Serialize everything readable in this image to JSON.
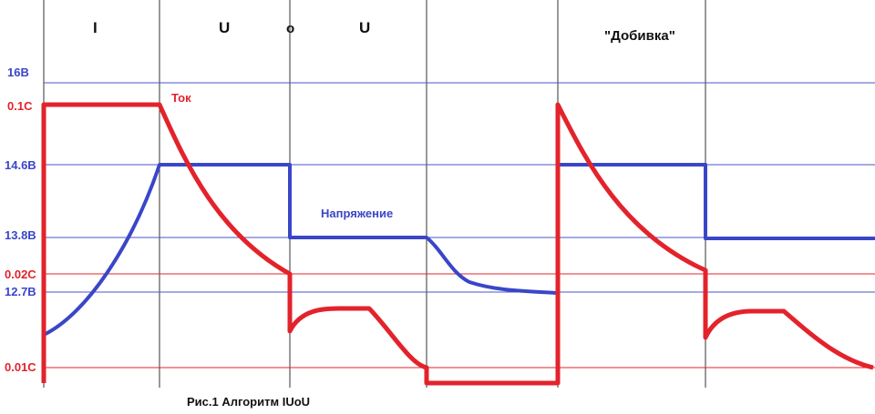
{
  "stages": [
    "I",
    "U",
    "o",
    "U",
    "\"Добивка\""
  ],
  "levels": {
    "voltage_16": "16В",
    "current_01": "0.1C",
    "voltage_146": "14.6В",
    "voltage_138": "13.8В",
    "current_002": "0.02C",
    "voltage_127": "12.7В",
    "current_001": "0.01C"
  },
  "curve_labels": {
    "current": "Ток",
    "voltage": "Напряжение"
  },
  "caption": "Рис.1 Алгоритм IUoU",
  "colors": {
    "voltage": "#3a46c8",
    "current": "#e3232b",
    "grid_voltage": "#4a55c8",
    "grid_current": "#e3232b",
    "divider": "#333333"
  }
}
